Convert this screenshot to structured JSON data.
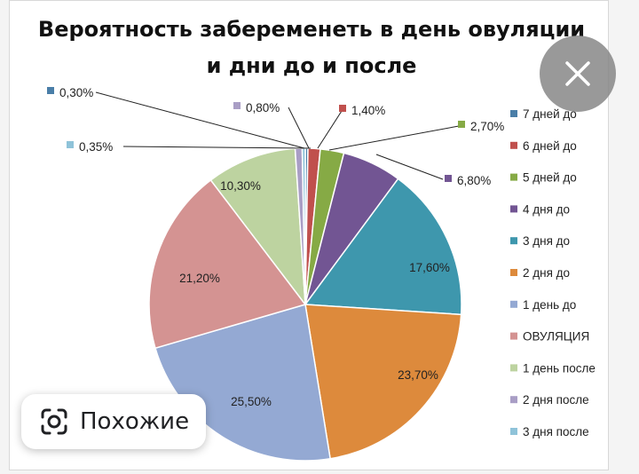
{
  "chart_data": {
    "type": "pie",
    "title_lines": [
      "Вероятность забеременеть в день овуляции",
      "и дни до и после"
    ],
    "legend_position": "right",
    "slices": [
      {
        "name": "7 дней до",
        "value": 0.3,
        "label": "0,30%",
        "color": "#4a7ea8"
      },
      {
        "name": "6 дней до",
        "value": 1.4,
        "label": "1,40%",
        "color": "#c0504d"
      },
      {
        "name": "5 дней до",
        "value": 2.7,
        "label": "2,70%",
        "color": "#86aa45"
      },
      {
        "name": "4 дня до",
        "value": 6.8,
        "label": "6,80%",
        "color": "#725593"
      },
      {
        "name": "3 дня до",
        "value": 17.6,
        "label": "17,60%",
        "color": "#3e97ad"
      },
      {
        "name": "2 дня до",
        "value": 23.7,
        "label": "23,70%",
        "color": "#dd8a3c"
      },
      {
        "name": "1 день до",
        "value": 25.5,
        "label": "25,50%",
        "color": "#94a9d3"
      },
      {
        "name": "ОВУЛЯЦИЯ",
        "value": 21.2,
        "label": "21,20%",
        "color": "#d49392"
      },
      {
        "name": "1 день после",
        "value": 10.3,
        "label": "10,30%",
        "color": "#bdd3a0"
      },
      {
        "name": "2 дня после",
        "value": 0.8,
        "label": "0,80%",
        "color": "#a99ec5"
      },
      {
        "name": "3 дня после",
        "value": 0.35,
        "label": "0,35%",
        "color": "#8fc3d9"
      }
    ]
  },
  "overlay": {
    "similar_label": "Похожие",
    "close_icon": "close-icon",
    "lens_icon": "lens-icon"
  }
}
